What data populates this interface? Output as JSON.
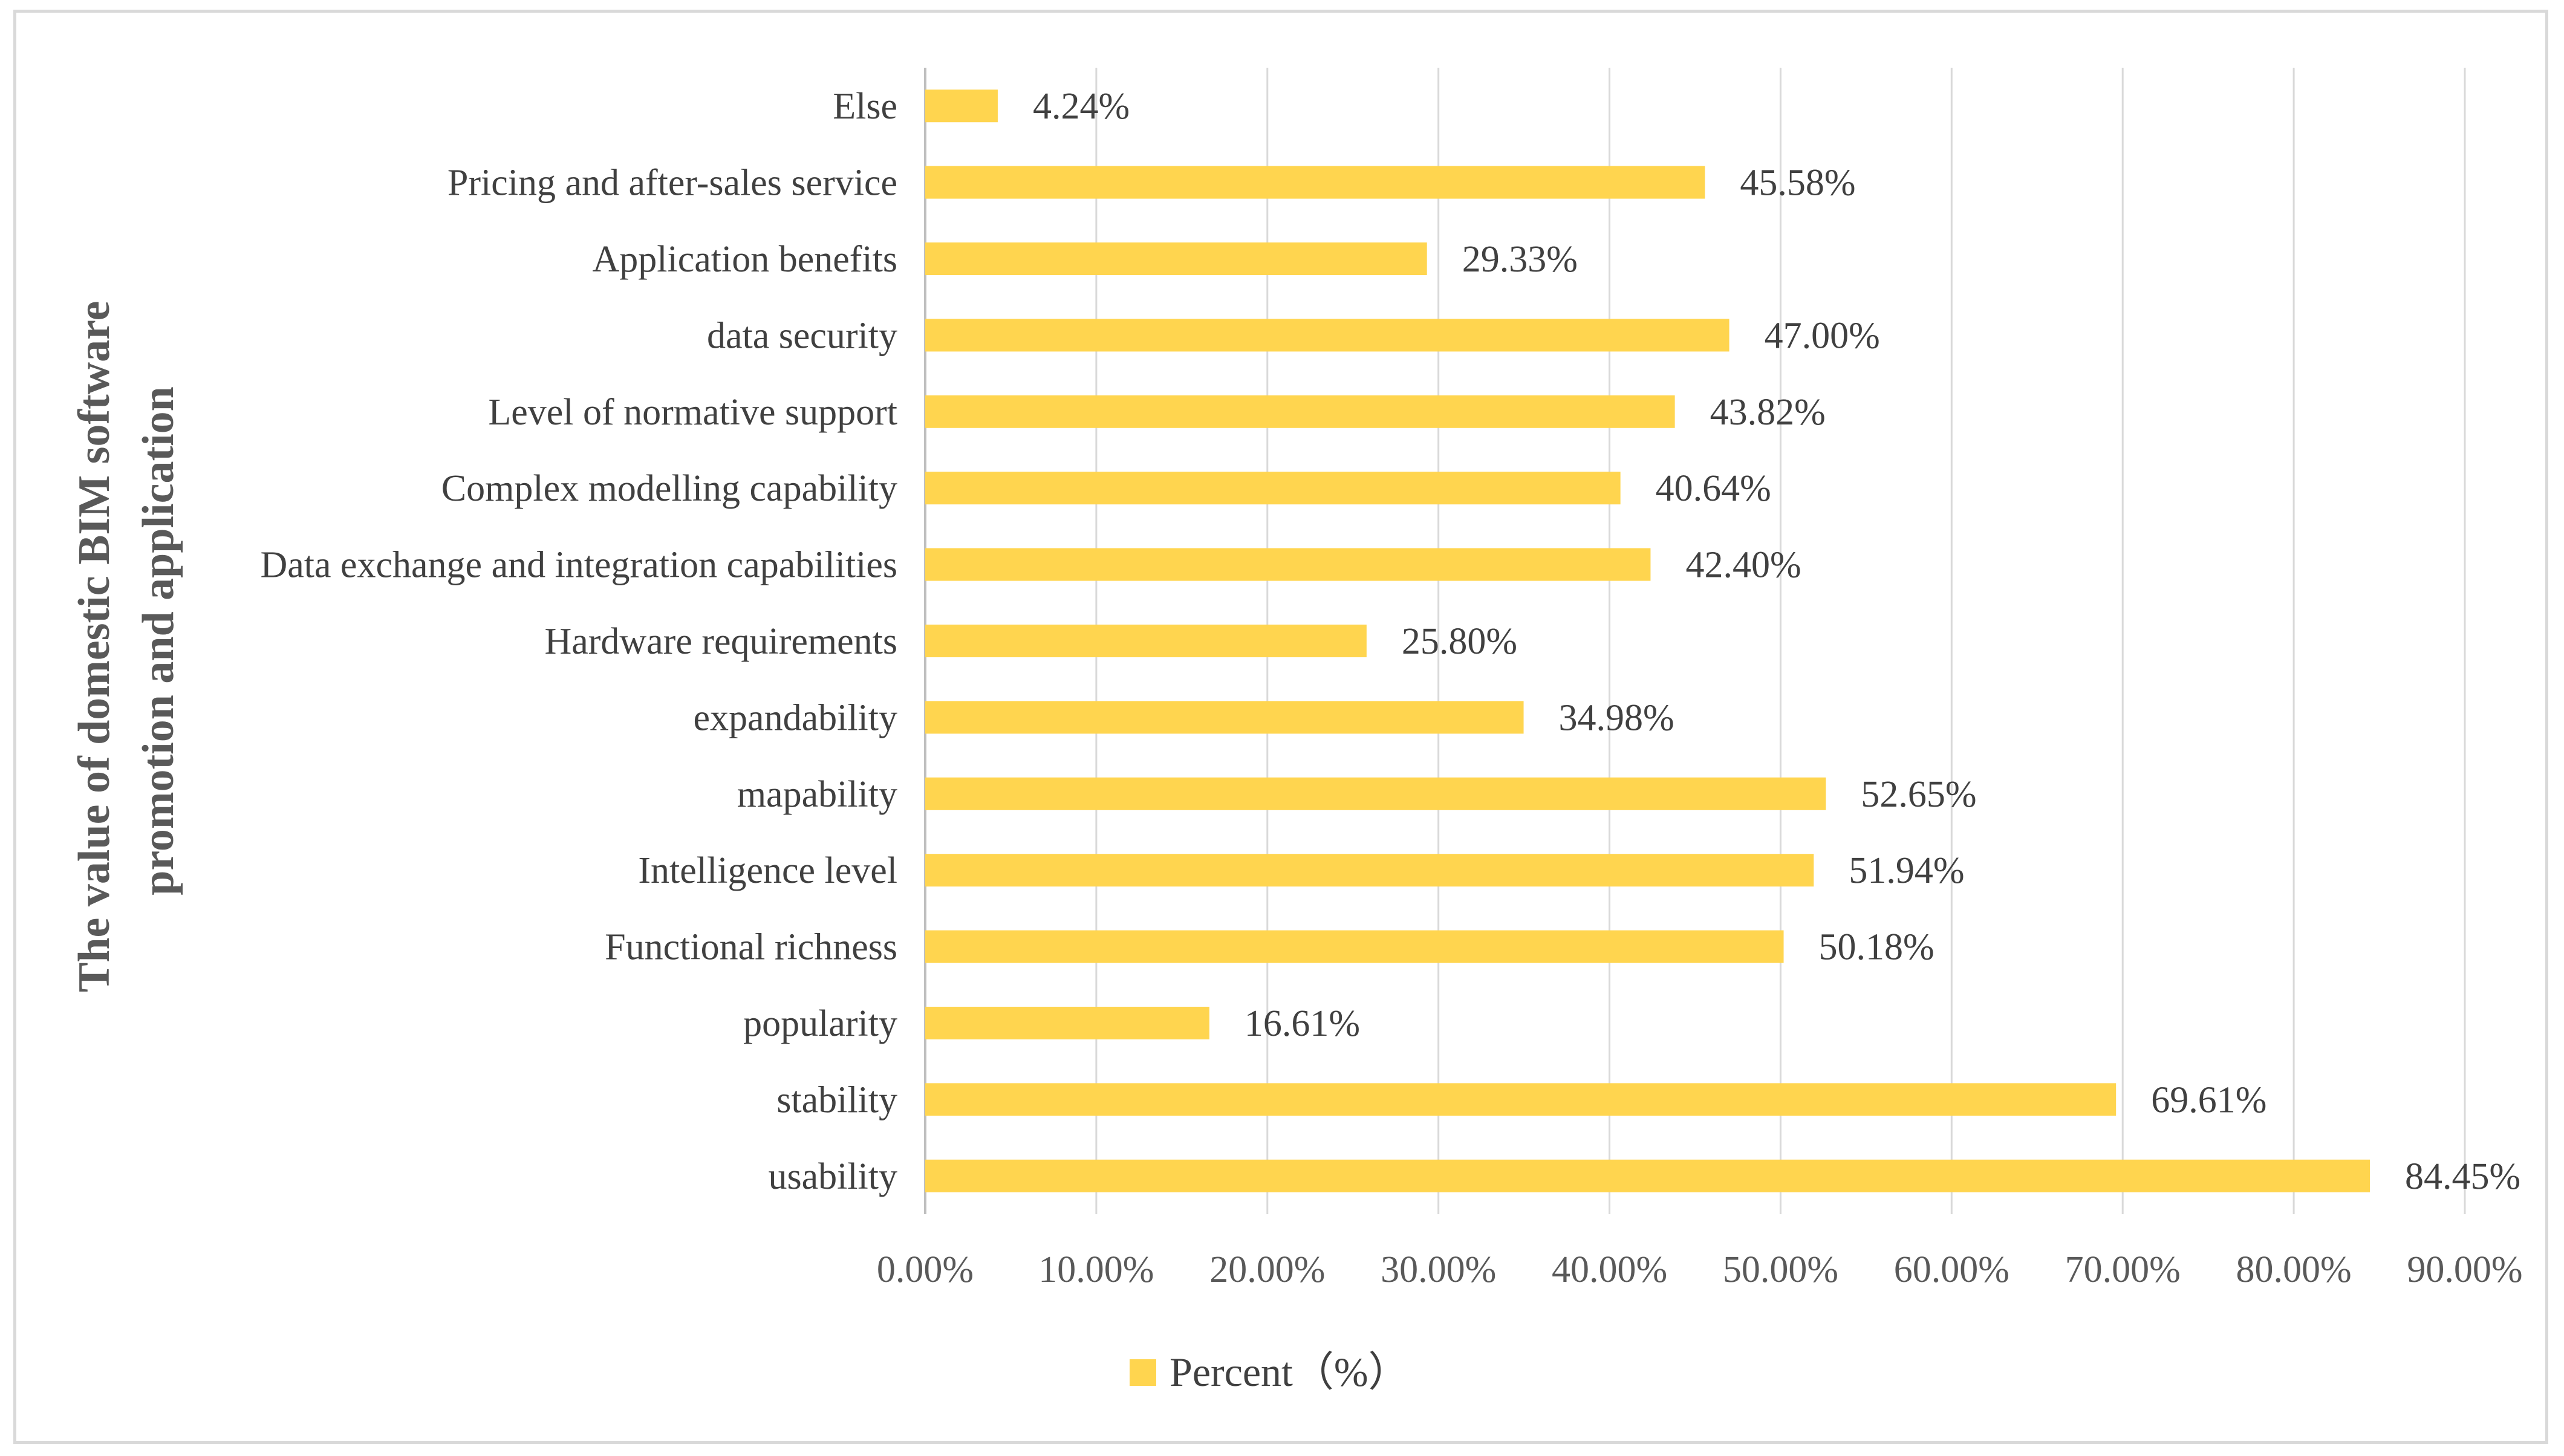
{
  "chart_data": {
    "type": "bar",
    "orientation": "horizontal",
    "title": "",
    "ylabel_lines": [
      "The value of domestic BIM software",
      "promotion and application"
    ],
    "xlabel": "",
    "categories": [
      "usability",
      "stability",
      "popularity",
      "Functional richness",
      "Intelligence level",
      "mapability",
      "expandability",
      "Hardware requirements",
      "Data exchange and integration capabilities",
      "Complex modelling capability",
      "Level of normative support",
      "data security",
      "Application benefits",
      "Pricing and after-sales service",
      "Else"
    ],
    "series": [
      {
        "name": "Percent（%）",
        "color": "#ffd54f",
        "values": [
          84.45,
          69.61,
          16.61,
          50.18,
          51.94,
          52.65,
          34.98,
          25.8,
          42.4,
          40.64,
          43.82,
          47.0,
          29.33,
          45.58,
          4.24
        ],
        "data_labels": [
          "84.45%",
          "69.61%",
          "16.61%",
          "50.18%",
          "51.94%",
          "52.65%",
          "34.98%",
          "25.80%",
          "42.40%",
          "40.64%",
          "43.82%",
          "47.00%",
          "29.33%",
          "45.58%",
          "4.24%"
        ]
      }
    ],
    "xlim": [
      0,
      90
    ],
    "xticks": [
      0,
      10,
      20,
      30,
      40,
      50,
      60,
      70,
      80,
      90
    ],
    "xtick_labels": [
      "0.00%",
      "10.00%",
      "20.00%",
      "30.00%",
      "40.00%",
      "50.00%",
      "60.00%",
      "70.00%",
      "80.00%",
      "90.00%"
    ],
    "grid": "vertical",
    "legend_position": "bottom",
    "legend_label": "Percent（%）",
    "colors": {
      "bar": "#ffd54f",
      "grid": "#d9d9d9",
      "axis": "#bfbfbf",
      "text": "#404040",
      "title": "#595959"
    }
  }
}
